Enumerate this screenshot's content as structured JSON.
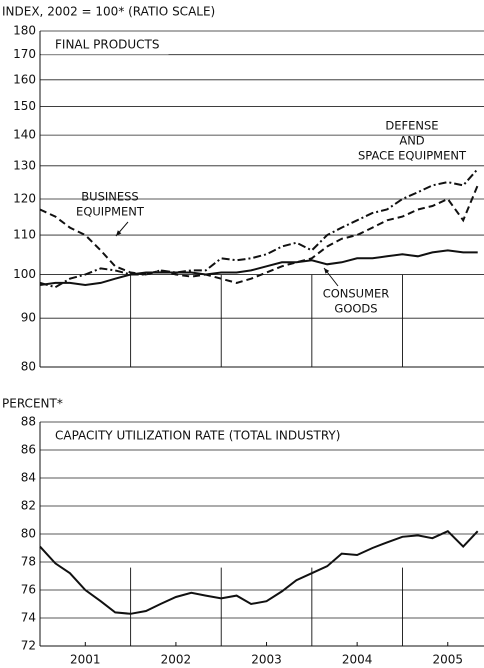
{
  "chart_data": [
    {
      "type": "line",
      "log": true,
      "grid": true,
      "ylabel": "INDEX, 2002 = 100* (RATIO SCALE)",
      "title": "FINAL PRODUCTS",
      "x": [
        2001.0,
        2001.17,
        2001.33,
        2001.5,
        2001.67,
        2001.83,
        2002.0,
        2002.17,
        2002.33,
        2002.5,
        2002.67,
        2002.83,
        2003.0,
        2003.17,
        2003.33,
        2003.5,
        2003.67,
        2003.83,
        2004.0,
        2004.17,
        2004.33,
        2004.5,
        2004.67,
        2004.83,
        2005.0,
        2005.17,
        2005.33,
        2005.5,
        2005.67,
        2005.83
      ],
      "xlim": [
        2001,
        2005.9
      ],
      "year_dividers": [
        2002,
        2003,
        2004,
        2005
      ],
      "ylim": [
        80,
        180
      ],
      "yticks": [
        80,
        90,
        100,
        110,
        120,
        130,
        140,
        150,
        160,
        170,
        180
      ],
      "series": [
        {
          "name": [
            "DEFENSE",
            "AND",
            "SPACE EQUIPMENT"
          ],
          "color": "#111",
          "style": "dashdot",
          "values": [
            98,
            97,
            99,
            100,
            101.5,
            101,
            100,
            100,
            101,
            100.5,
            101,
            101,
            104,
            103.5,
            104,
            105,
            107,
            108,
            106,
            110,
            112,
            114,
            116,
            117,
            120,
            122,
            124,
            125,
            124,
            129
          ]
        },
        {
          "name": [
            "BUSINESS",
            "EQUIPMENT"
          ],
          "color": "#111",
          "style": "dashed",
          "values": [
            117,
            115,
            112,
            110,
            106,
            102,
            100.5,
            100,
            101,
            100,
            99.5,
            100,
            99,
            98,
            99,
            100.5,
            102,
            103,
            104,
            107,
            109,
            110,
            112,
            114,
            115,
            117,
            118,
            120,
            114,
            124
          ]
        },
        {
          "name": [
            "CONSUMER",
            "GOODS"
          ],
          "color": "#111",
          "style": "solid",
          "values": [
            97.5,
            98,
            98,
            97.5,
            98,
            99,
            100,
            100.5,
            100.5,
            100.5,
            100.5,
            100,
            100.5,
            100.5,
            101,
            102,
            103,
            103,
            103.5,
            102.5,
            103,
            104,
            104,
            104.5,
            105,
            104.5,
            105.5,
            106,
            105.5,
            105.5
          ]
        }
      ]
    },
    {
      "type": "line",
      "grid": true,
      "ylabel": "PERCENT*",
      "title": "CAPACITY UTILIZATION RATE (TOTAL INDUSTRY)",
      "x": [
        2001.0,
        2001.17,
        2001.33,
        2001.5,
        2001.67,
        2001.83,
        2002.0,
        2002.17,
        2002.33,
        2002.5,
        2002.67,
        2002.83,
        2003.0,
        2003.17,
        2003.33,
        2003.5,
        2003.67,
        2003.83,
        2004.0,
        2004.17,
        2004.33,
        2004.5,
        2004.67,
        2004.83,
        2005.0,
        2005.17,
        2005.33,
        2005.5,
        2005.67,
        2005.83
      ],
      "xlim": [
        2001,
        2005.9
      ],
      "year_dividers": [
        2002,
        2003,
        2004,
        2005
      ],
      "xticks": [
        {
          "value": 2001.5,
          "label": "2001"
        },
        {
          "value": 2002.5,
          "label": "2002"
        },
        {
          "value": 2003.5,
          "label": "2003"
        },
        {
          "value": 2004.5,
          "label": "2004"
        },
        {
          "value": 2005.5,
          "label": "2005"
        }
      ],
      "ylim": [
        72,
        88
      ],
      "yticks": [
        72,
        74,
        76,
        78,
        80,
        82,
        84,
        86,
        88
      ],
      "series": [
        {
          "name": null,
          "color": "#111",
          "style": "solid",
          "values": [
            79.1,
            77.9,
            77.2,
            76,
            75.2,
            74.4,
            74.3,
            74.5,
            75,
            75.5,
            75.8,
            75.6,
            75.4,
            75.6,
            75,
            75.2,
            75.9,
            76.7,
            77.2,
            77.7,
            78.6,
            78.5,
            79,
            79.4,
            79.8,
            79.9,
            79.7,
            80.2,
            79.1,
            80.2
          ]
        }
      ]
    }
  ]
}
